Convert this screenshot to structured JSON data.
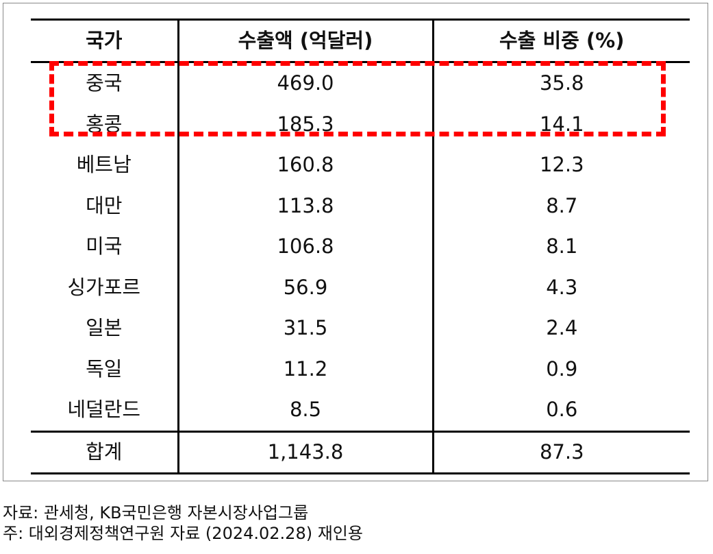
{
  "table": {
    "headers": [
      "국가",
      "수출액 (억달러)",
      "수출 비중 (%)"
    ],
    "rows": [
      {
        "country": "중국",
        "amount": "469.0",
        "share": "35.8"
      },
      {
        "country": "홍콩",
        "amount": "185.3",
        "share": "14.1"
      },
      {
        "country": "베트남",
        "amount": "160.8",
        "share": "12.3"
      },
      {
        "country": "대만",
        "amount": "113.8",
        "share": "8.7"
      },
      {
        "country": "미국",
        "amount": "106.8",
        "share": "8.1"
      },
      {
        "country": "싱가포르",
        "amount": "56.9",
        "share": "4.3"
      },
      {
        "country": "일본",
        "amount": "31.5",
        "share": "2.4"
      },
      {
        "country": "독일",
        "amount": "11.2",
        "share": "0.9"
      },
      {
        "country": "네덜란드",
        "amount": "8.5",
        "share": "0.6"
      }
    ],
    "total": {
      "label": "합계",
      "amount": "1,143.8",
      "share": "87.3"
    }
  },
  "highlight_color": "#ff0000",
  "notes": {
    "source": "자료: 관세청, KB국민은행 자본시장사업그룹",
    "footnote": "주: 대외경제정책연구원 자료 (2024.02.28) 재인용"
  }
}
